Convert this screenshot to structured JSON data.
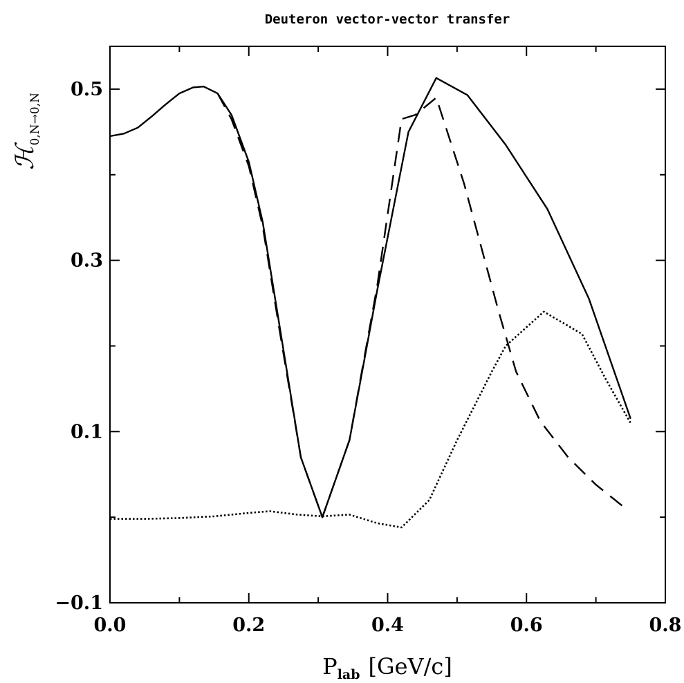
{
  "chart_data": {
    "type": "line",
    "title": "Deuteron vector-vector transfer",
    "xlabel": {
      "main": "P",
      "sub": "lab",
      "unit": "[GeV/c]"
    },
    "ylabel": {
      "main": "ℋ",
      "sub": "0,N→0,N"
    },
    "xlim": [
      0.0,
      0.8
    ],
    "ylim": [
      -0.1,
      0.55
    ],
    "x_ticks": [
      "0.0",
      "0.2",
      "0.4",
      "0.6",
      "0.8"
    ],
    "y_ticks": [
      "-0.1",
      "0.1",
      "0.3",
      "0.5"
    ],
    "grid": false,
    "series": [
      {
        "style": "solid",
        "x": [
          0.0,
          0.02,
          0.04,
          0.06,
          0.08,
          0.1,
          0.12,
          0.135,
          0.155,
          0.175,
          0.2,
          0.22,
          0.245,
          0.275,
          0.306,
          0.345,
          0.385,
          0.43,
          0.47,
          0.515,
          0.57,
          0.63,
          0.69,
          0.75
        ],
        "y": [
          0.445,
          0.448,
          0.455,
          0.468,
          0.482,
          0.495,
          0.502,
          0.503,
          0.495,
          0.47,
          0.415,
          0.345,
          0.22,
          0.07,
          0.0,
          0.09,
          0.265,
          0.45,
          0.513,
          0.493,
          0.435,
          0.36,
          0.255,
          0.115
        ]
      },
      {
        "style": "dashed",
        "x": [
          0.155,
          0.175,
          0.2,
          0.22,
          0.245,
          0.275,
          0.306,
          0.345,
          0.385,
          0.42,
          0.44,
          0.47,
          0.51,
          0.56,
          0.585,
          0.62,
          0.66,
          0.7,
          0.74
        ],
        "y": [
          0.495,
          0.465,
          0.41,
          0.34,
          0.215,
          0.07,
          0.0,
          0.09,
          0.27,
          0.465,
          0.47,
          0.49,
          0.39,
          0.24,
          0.17,
          0.112,
          0.07,
          0.038,
          0.012
        ]
      },
      {
        "style": "dotted",
        "x": [
          0.0,
          0.05,
          0.1,
          0.15,
          0.2,
          0.23,
          0.27,
          0.306,
          0.345,
          0.385,
          0.42,
          0.46,
          0.5,
          0.55,
          0.57,
          0.625,
          0.68,
          0.715,
          0.75
        ],
        "y": [
          -0.002,
          -0.002,
          -0.001,
          0.001,
          0.005,
          0.007,
          0.003,
          0.001,
          0.003,
          -0.007,
          -0.012,
          0.02,
          0.09,
          0.17,
          0.2,
          0.24,
          0.214,
          0.16,
          0.11
        ]
      }
    ]
  }
}
